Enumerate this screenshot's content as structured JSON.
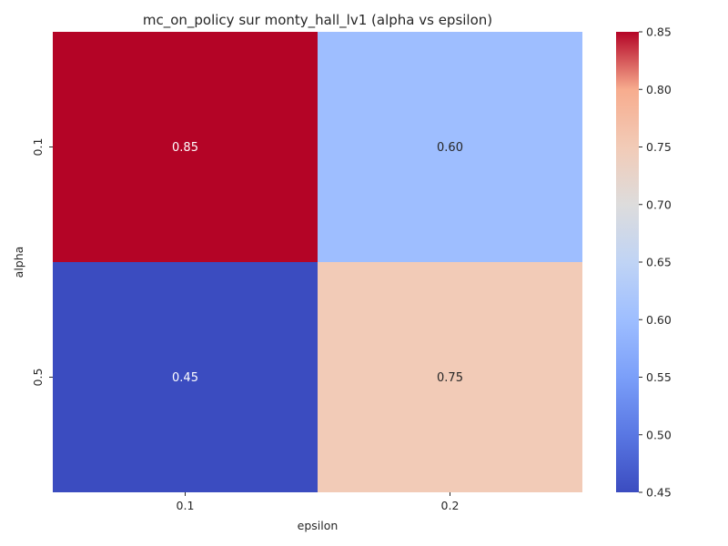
{
  "chart_data": {
    "type": "heatmap",
    "title": "mc_on_policy sur monty_hall_lv1 (alpha vs epsilon)",
    "xlabel": "epsilon",
    "ylabel": "alpha",
    "x_categories": [
      "0.1",
      "0.2"
    ],
    "y_categories": [
      "0.1",
      "0.5"
    ],
    "values": [
      [
        0.85,
        0.6
      ],
      [
        0.45,
        0.75
      ]
    ],
    "value_labels": [
      [
        "0.85",
        "0.60"
      ],
      [
        "0.45",
        "0.75"
      ]
    ],
    "colormap": "coolwarm",
    "color_range": [
      0.45,
      0.85
    ],
    "colorbar_ticks": [
      0.45,
      0.5,
      0.55,
      0.6,
      0.65,
      0.7,
      0.75,
      0.8,
      0.85
    ],
    "colorbar_tick_labels": [
      "0.45",
      "0.50",
      "0.55",
      "0.60",
      "0.65",
      "0.70",
      "0.75",
      "0.80",
      "0.85"
    ],
    "grid": false,
    "colorbar_placement": "right"
  }
}
